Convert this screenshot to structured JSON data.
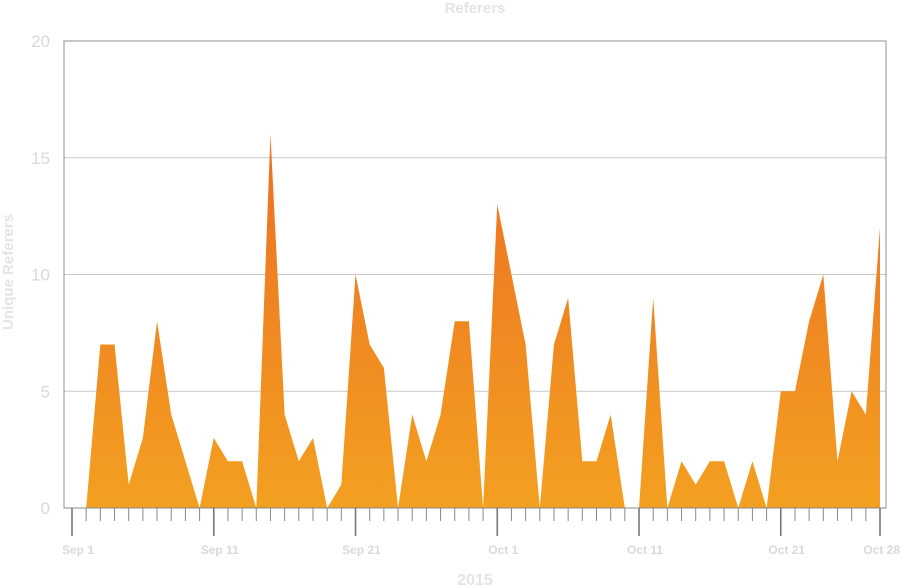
{
  "chart_data": {
    "type": "area",
    "title": "Referers",
    "xlabel": "2015",
    "ylabel": "Unique Referers",
    "ylim": [
      0,
      20
    ],
    "yticks": [
      0,
      5,
      10,
      15,
      20
    ],
    "xlim": [
      "2015-09-01",
      "2015-10-28"
    ],
    "xtick_labels": [
      {
        "date": "2015-09-01",
        "label": "Sep 1"
      },
      {
        "date": "2015-09-11",
        "label": "Sep 11"
      },
      {
        "date": "2015-09-21",
        "label": "Sep 21"
      },
      {
        "date": "2015-10-01",
        "label": "Oct 1"
      },
      {
        "date": "2015-10-11",
        "label": "Oct 11"
      },
      {
        "date": "2015-10-21",
        "label": "Oct 21"
      },
      {
        "date": "2015-10-28",
        "label": "Oct 28"
      }
    ],
    "grid": true,
    "colors": {
      "fill_top": "#ec6f22",
      "fill_bottom": "#f3a021",
      "grid": "#c8c8c8",
      "axis": "#888888"
    },
    "series": [
      {
        "x": [
          "2015-09-02",
          "2015-09-03",
          "2015-09-04",
          "2015-09-05",
          "2015-09-06",
          "2015-09-07",
          "2015-09-08",
          "2015-09-09",
          "2015-09-10",
          "2015-09-11",
          "2015-09-12",
          "2015-09-13",
          "2015-09-14",
          "2015-09-15",
          "2015-09-16",
          "2015-09-17",
          "2015-09-18",
          "2015-09-19",
          "2015-09-20",
          "2015-09-21",
          "2015-09-22",
          "2015-09-23",
          "2015-09-24",
          "2015-09-25",
          "2015-09-26",
          "2015-09-27",
          "2015-09-28",
          "2015-09-29",
          "2015-09-30",
          "2015-10-01",
          "2015-10-02",
          "2015-10-03",
          "2015-10-04",
          "2015-10-05",
          "2015-10-06",
          "2015-10-07",
          "2015-10-08",
          "2015-10-09",
          "2015-10-10",
          "2015-10-11",
          "2015-10-12",
          "2015-10-13",
          "2015-10-14",
          "2015-10-15",
          "2015-10-16",
          "2015-10-17",
          "2015-10-18",
          "2015-10-19",
          "2015-10-20",
          "2015-10-21",
          "2015-10-22",
          "2015-10-23",
          "2015-10-24",
          "2015-10-25",
          "2015-10-26",
          "2015-10-27",
          "2015-10-28"
        ],
        "values": [
          0,
          7,
          7,
          1,
          3,
          8,
          4,
          2,
          0,
          3,
          2,
          2,
          0,
          16,
          4,
          2,
          3,
          0,
          1,
          10,
          7,
          6,
          0,
          4,
          2,
          4,
          8,
          8,
          0,
          13,
          10,
          7,
          0,
          7,
          9,
          2,
          2,
          4,
          0,
          0,
          9,
          0,
          2,
          1,
          2,
          2,
          0,
          2,
          0,
          5,
          5,
          8,
          10,
          2,
          5,
          4,
          12
        ]
      }
    ]
  }
}
